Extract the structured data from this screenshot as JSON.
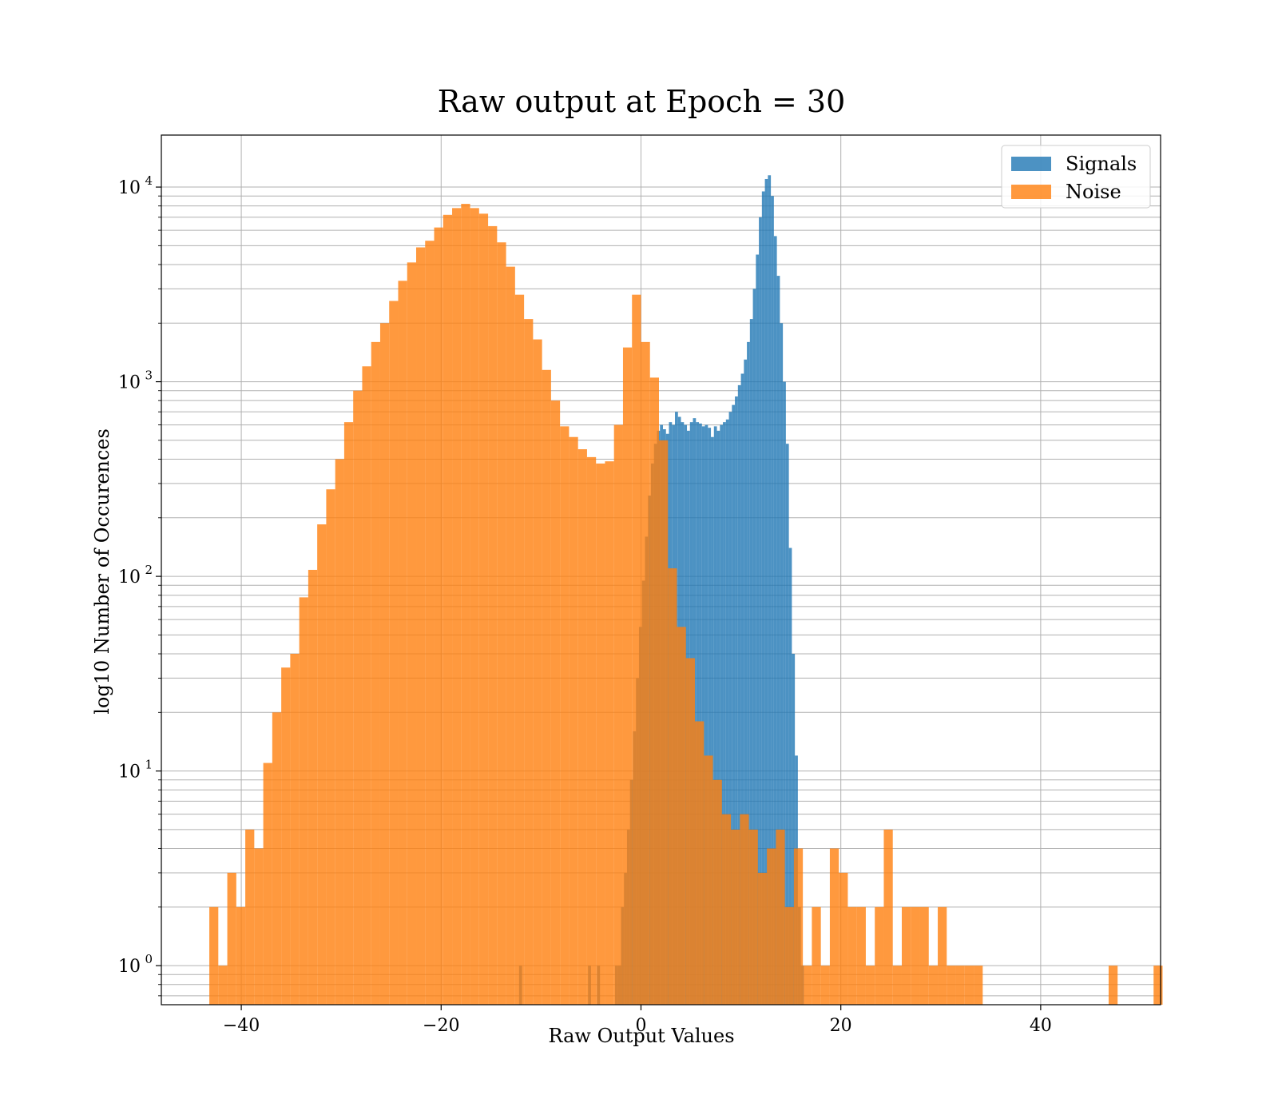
{
  "chart_data": {
    "type": "bar",
    "title": "Raw output at Epoch = 30",
    "xlabel": "Raw Output Values",
    "ylabel": "log10 Number of Occurences",
    "xlim": [
      -48,
      52
    ],
    "ylim": [
      0.63,
      18500
    ],
    "yscale": "log",
    "grid": true,
    "legend": "top-right",
    "xticks": [
      -40,
      -20,
      0,
      20,
      40
    ],
    "xtick_labels": [
      "−40",
      "−20",
      "0",
      "20",
      "40"
    ],
    "yticks": [
      {
        "value": 1,
        "base": "10",
        "exp": "0"
      },
      {
        "value": 10,
        "base": "10",
        "exp": "1"
      },
      {
        "value": 100,
        "base": "10",
        "exp": "2"
      },
      {
        "value": 1000,
        "base": "10",
        "exp": "3"
      },
      {
        "value": 10000,
        "base": "10",
        "exp": "4"
      }
    ],
    "series": [
      {
        "name": "Signals",
        "color": "#1f77b4",
        "opacity": 0.8,
        "bin_start": -12.2,
        "bin_width": 0.3,
        "values": [
          1,
          0,
          0,
          0,
          0,
          0,
          0,
          0,
          0,
          0,
          0,
          0,
          0,
          0,
          0,
          0,
          0,
          0,
          0,
          0,
          0,
          0,
          0,
          1,
          0,
          0,
          1,
          0,
          0,
          0,
          0,
          0,
          1,
          1,
          2,
          3,
          5,
          9,
          16,
          30,
          55,
          95,
          160,
          260,
          380,
          480,
          560,
          600,
          570,
          540,
          620,
          600,
          700,
          660,
          620,
          600,
          560,
          620,
          650,
          620,
          610,
          590,
          600,
          580,
          520,
          590,
          560,
          600,
          620,
          640,
          700,
          760,
          840,
          960,
          1100,
          1300,
          1600,
          2100,
          3000,
          4500,
          7000,
          9500,
          11000,
          11500,
          9000,
          5600,
          3500,
          2000,
          1000,
          480,
          140,
          40,
          12,
          2,
          1
        ]
      },
      {
        "name": "Noise",
        "color": "#ff7f0e",
        "opacity": 0.8,
        "bin_start": -43.2,
        "bin_width": 0.9,
        "values": [
          2,
          1,
          3,
          2,
          5,
          4,
          11,
          20,
          34,
          40,
          78,
          108,
          185,
          280,
          400,
          620,
          900,
          1200,
          1600,
          2000,
          2600,
          3300,
          4100,
          4900,
          5300,
          6200,
          7200,
          7800,
          8200,
          7800,
          7300,
          6300,
          5200,
          3900,
          2800,
          2100,
          1650,
          1150,
          800,
          590,
          520,
          450,
          410,
          380,
          390,
          600,
          1500,
          2800,
          1600,
          1050,
          500,
          110,
          55,
          38,
          18,
          12,
          9,
          6,
          5,
          6,
          5,
          3,
          4,
          5,
          2,
          4,
          1,
          2,
          1,
          4,
          3,
          2,
          2,
          1,
          2,
          5,
          1,
          2,
          2,
          2,
          1,
          2,
          1,
          1,
          1,
          1,
          0,
          0,
          0,
          0,
          0,
          0,
          0,
          0,
          0,
          0,
          0,
          0,
          0,
          0,
          1,
          0,
          0,
          0,
          0,
          1
        ]
      }
    ]
  }
}
